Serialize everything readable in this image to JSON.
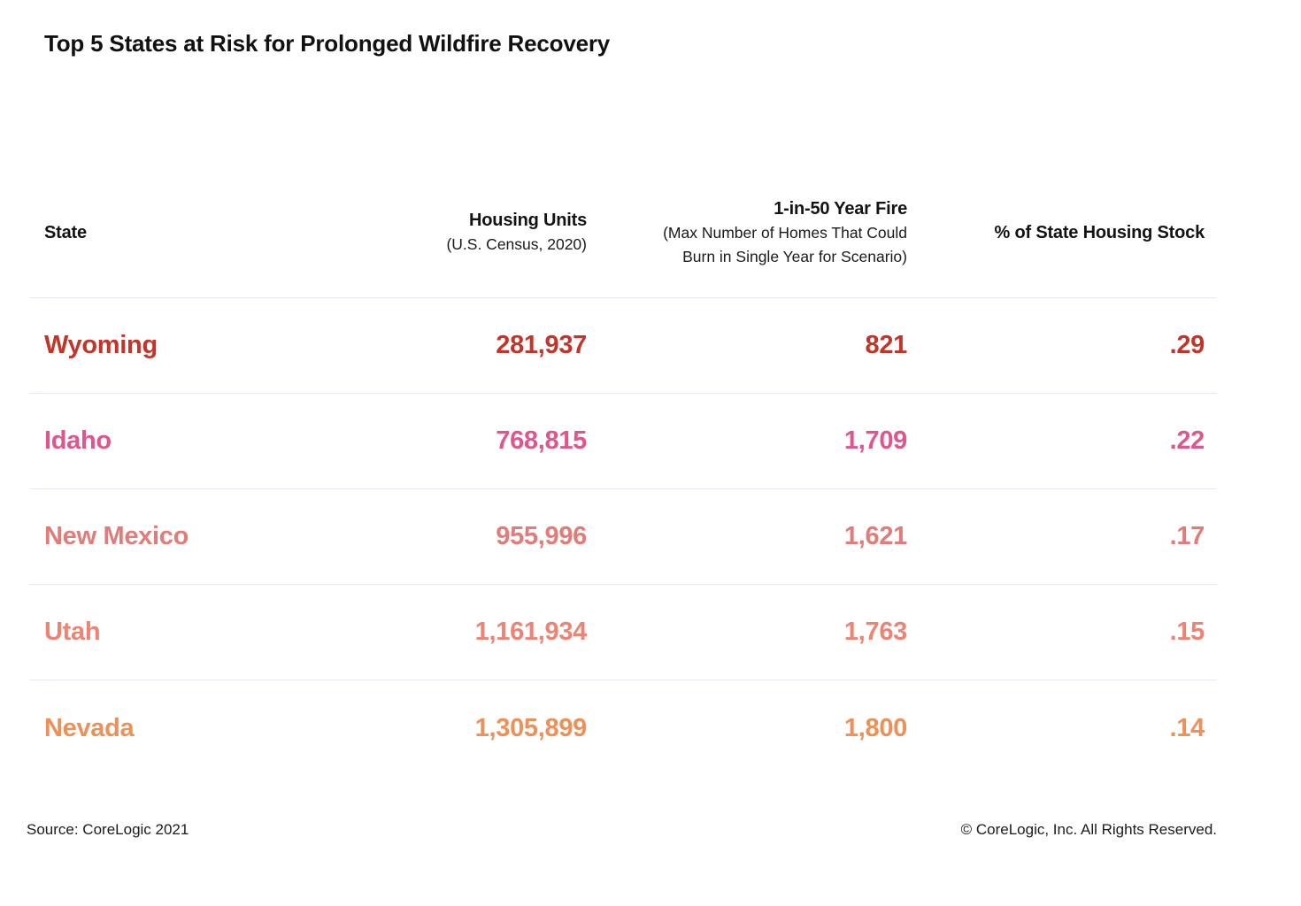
{
  "title": "Top 5 States at Risk for Prolonged Wildfire Recovery",
  "table": {
    "columns": [
      {
        "label": "State",
        "sub": ""
      },
      {
        "label": "Housing Units",
        "sub": "(U.S. Census, 2020)"
      },
      {
        "label": "1-in-50 Year Fire",
        "sub": "(Max Number of Homes That Could\nBurn in Single Year for Scenario)"
      },
      {
        "label": "% of State Housing Stock",
        "sub": ""
      }
    ],
    "rows": [
      {
        "state": "Wyoming",
        "housing_units": "281,937",
        "fire": "821",
        "pct": ".29",
        "color": "#C43529"
      },
      {
        "state": "Idaho",
        "housing_units": "768,815",
        "fire": "1,709",
        "pct": ".22",
        "color": "#E1548D"
      },
      {
        "state": "New Mexico",
        "housing_units": "955,996",
        "fire": "1,621",
        "pct": ".17",
        "color": "#E27C78"
      },
      {
        "state": "Utah",
        "housing_units": "1,161,934",
        "fire": "1,763",
        "pct": ".15",
        "color": "#EE8374"
      },
      {
        "state": "Nevada",
        "housing_units": "1,305,899",
        "fire": "1,800",
        "pct": ".14",
        "color": "#EB9159"
      }
    ]
  },
  "footer": {
    "source": "Source: CoreLogic 2021",
    "copyright": "© CoreLogic, Inc. All Rights Reserved."
  },
  "colors": {
    "divider": "#E8E7F2"
  },
  "chart_data": {
    "type": "table",
    "title": "Top 5 States at Risk for Prolonged Wildfire Recovery",
    "columns": [
      "State",
      "Housing Units (U.S. Census, 2020)",
      "1-in-50 Year Fire (Max Number of Homes That Could Burn in Single Year for Scenario)",
      "% of State Housing Stock"
    ],
    "rows": [
      [
        "Wyoming",
        281937,
        821,
        0.29
      ],
      [
        "Idaho",
        768815,
        1709,
        0.22
      ],
      [
        "New Mexico",
        955996,
        1621,
        0.17
      ],
      [
        "Utah",
        1161934,
        1763,
        0.15
      ],
      [
        "Nevada",
        1305899,
        1800,
        0.14
      ]
    ],
    "source": "Source: CoreLogic 2021",
    "legend_position": "none",
    "grid": "horizontal-row-dividers"
  }
}
